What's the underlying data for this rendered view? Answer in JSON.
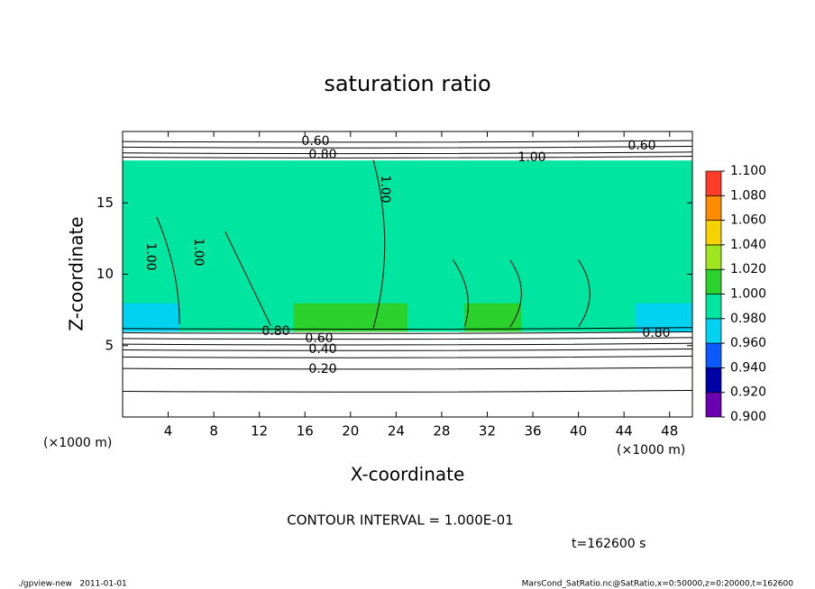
{
  "chart_data": {
    "type": "contour",
    "title": "saturation ratio",
    "x_label": "X-coordinate",
    "y_label": "Z-coordinate",
    "x_unit": "(×1000 m)",
    "y_unit": "(×1000 m)",
    "xlim": [
      0,
      50
    ],
    "ylim": [
      0,
      20
    ],
    "xticks": [
      4,
      8,
      12,
      16,
      20,
      24,
      28,
      32,
      36,
      40,
      44,
      48
    ],
    "yticks": [
      5,
      10,
      15
    ],
    "z": [
      [
        0.15,
        0.15,
        0.15,
        0.15,
        0.15,
        0.15,
        0.15,
        0.15,
        0.15,
        0.15
      ],
      [
        0.35,
        0.35,
        0.35,
        0.35,
        0.35,
        0.35,
        0.35,
        0.35,
        0.35,
        0.35
      ],
      [
        0.7,
        0.7,
        0.7,
        0.7,
        0.7,
        0.7,
        0.7,
        0.7,
        0.7,
        0.7
      ],
      [
        0.97,
        0.99,
        0.99,
        1.01,
        1.01,
        0.99,
        1.01,
        0.99,
        0.99,
        0.97
      ],
      [
        0.99,
        0.99,
        0.99,
        0.99,
        0.99,
        0.99,
        0.99,
        0.99,
        0.99,
        0.99
      ],
      [
        0.99,
        0.99,
        0.99,
        0.99,
        0.99,
        0.99,
        0.99,
        0.99,
        0.99,
        0.99
      ],
      [
        0.99,
        0.99,
        0.99,
        0.99,
        0.99,
        0.99,
        0.99,
        0.99,
        0.99,
        0.99
      ],
      [
        0.99,
        0.99,
        0.99,
        0.99,
        0.99,
        0.99,
        0.99,
        0.99,
        0.99,
        0.99
      ],
      [
        0.99,
        0.99,
        0.99,
        0.99,
        0.99,
        0.99,
        0.99,
        0.99,
        0.99,
        0.99
      ],
      [
        0.6,
        0.6,
        0.6,
        0.6,
        0.6,
        0.6,
        0.6,
        0.6,
        0.6,
        0.6
      ]
    ],
    "colorbar": {
      "levels": [
        {
          "value": 0.9,
          "label": "0.900"
        },
        {
          "value": 0.92,
          "label": "0.920"
        },
        {
          "value": 0.94,
          "label": "0.940"
        },
        {
          "value": 0.96,
          "label": "0.960"
        },
        {
          "value": 0.98,
          "label": "0.980"
        },
        {
          "value": 1.0,
          "label": "1.000"
        },
        {
          "value": 1.02,
          "label": "1.020"
        },
        {
          "value": 1.04,
          "label": "1.040"
        },
        {
          "value": 1.06,
          "label": "1.060"
        },
        {
          "value": 1.08,
          "label": "1.080"
        },
        {
          "value": 1.1,
          "label": "1.100"
        }
      ],
      "colors": [
        "#6a00b0",
        "#0000a8",
        "#0a5aff",
        "#00d2f0",
        "#00e6a0",
        "#2cd22c",
        "#a0e61e",
        "#f5d200",
        "#ff8c00",
        "#ff3c28"
      ]
    },
    "contour_labels": [
      {
        "value": 0.6,
        "label": "0.60"
      },
      {
        "value": 0.8,
        "label": "0.80"
      },
      {
        "value": 1.0,
        "label": "1.00"
      },
      {
        "value": 0.6,
        "label": "0.60"
      },
      {
        "value": 1.0,
        "label": "1.00"
      },
      {
        "value": 1.0,
        "label": "1.00"
      },
      {
        "value": 1.0,
        "label": "1.00"
      },
      {
        "value": 0.8,
        "label": "0.80"
      },
      {
        "value": 0.6,
        "label": "0.60"
      },
      {
        "value": 0.4,
        "label": "0.40"
      },
      {
        "value": 0.2,
        "label": "0.20"
      },
      {
        "value": 0.8,
        "label": "0.80"
      }
    ],
    "contour_interval": "CONTOUR INTERVAL = 1.000E-01",
    "time_label": "t=162600 s",
    "footer_left": "./gpview-new   2011-01-01",
    "footer_right": "MarsCond_SatRatio.nc@SatRatio,x=0:50000,z=0:20000,t=162600"
  }
}
